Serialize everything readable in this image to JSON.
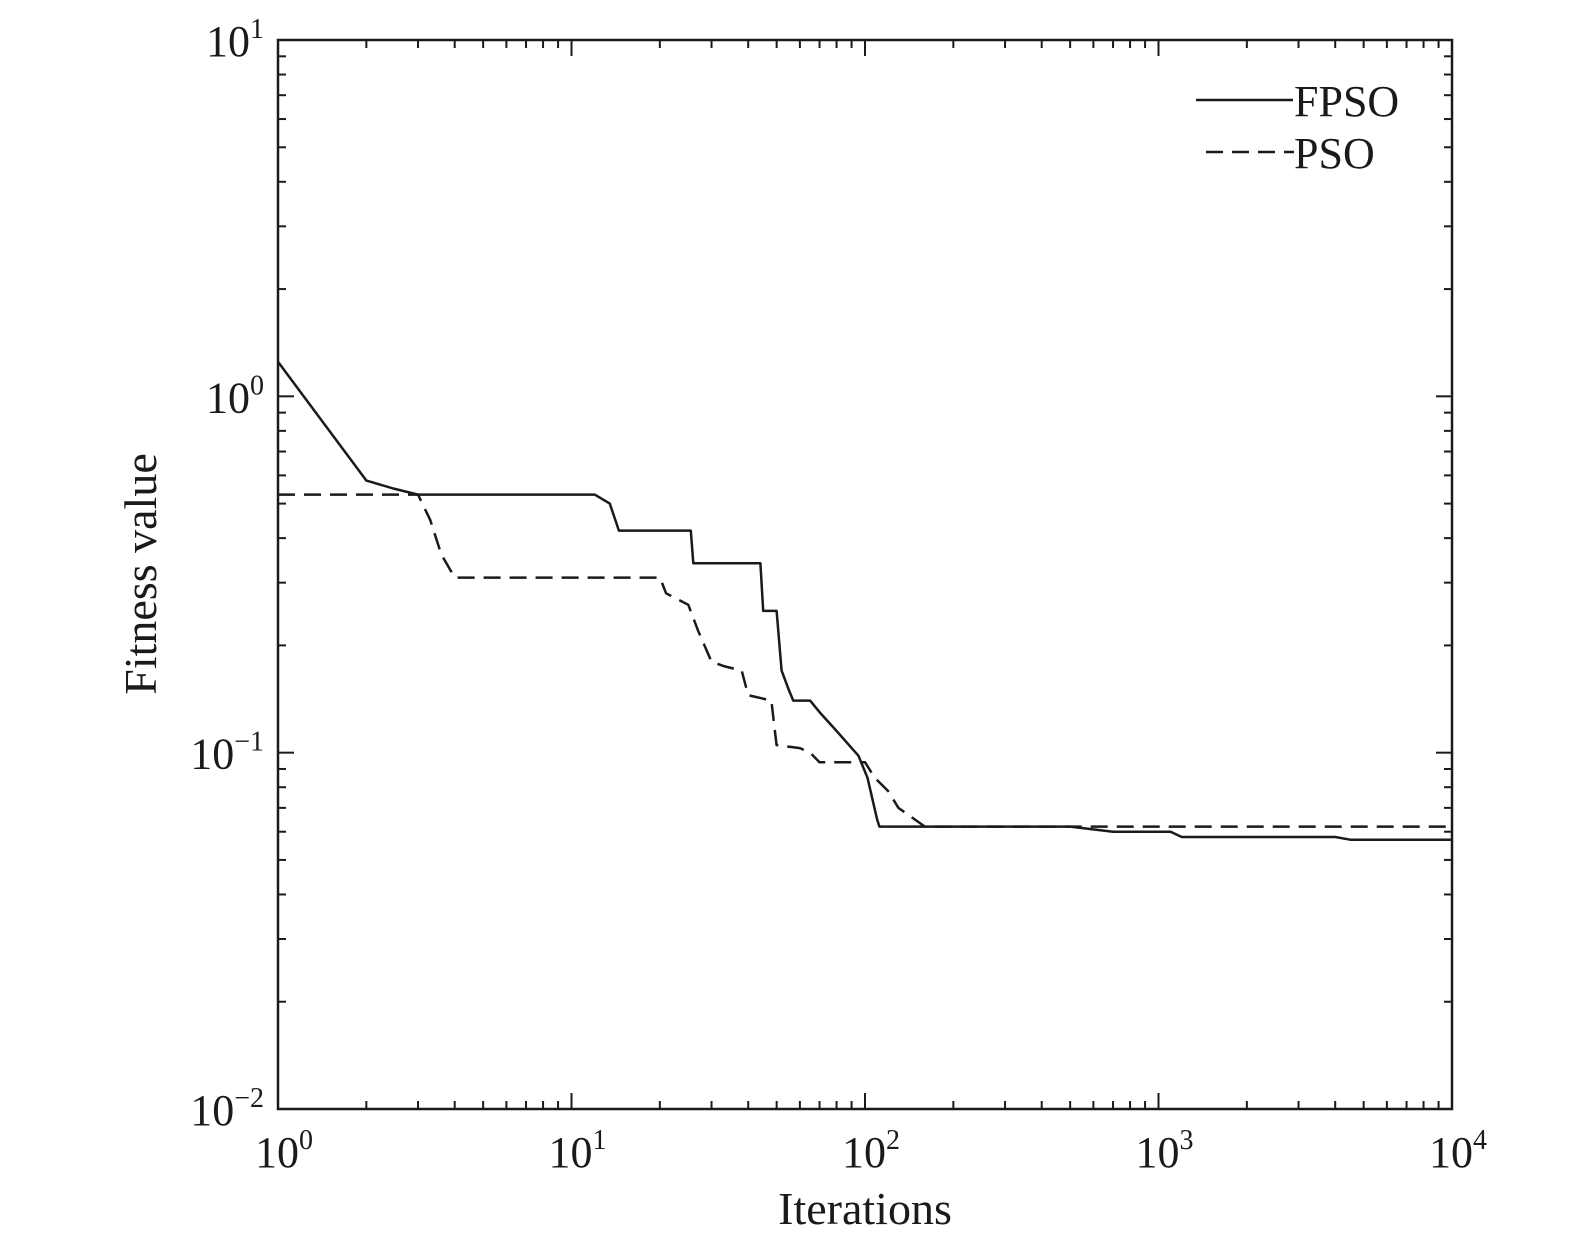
{
  "chart_data": {
    "type": "line",
    "xlabel": "Iterations",
    "ylabel": "Fitness value",
    "x_scale": "log",
    "y_scale": "log",
    "xlim": [
      1,
      10000
    ],
    "ylim": [
      0.01,
      10
    ],
    "grid": false,
    "legend_position": "top-right",
    "x_ticks": [
      {
        "value": 1,
        "base": "10",
        "exp": "0"
      },
      {
        "value": 10,
        "base": "10",
        "exp": "1"
      },
      {
        "value": 100,
        "base": "10",
        "exp": "2"
      },
      {
        "value": 1000,
        "base": "10",
        "exp": "3"
      },
      {
        "value": 10000,
        "base": "10",
        "exp": "4"
      }
    ],
    "y_ticks": [
      {
        "value": 0.01,
        "base": "10",
        "exp": "−2"
      },
      {
        "value": 0.1,
        "base": "10",
        "exp": "−1"
      },
      {
        "value": 1,
        "base": "10",
        "exp": "0"
      },
      {
        "value": 10,
        "base": "10",
        "exp": "1"
      }
    ],
    "series": [
      {
        "name": "FPSO",
        "style": "solid",
        "color": "#1a1a1a",
        "points": [
          [
            1,
            1.25
          ],
          [
            2,
            0.58
          ],
          [
            2.5,
            0.55
          ],
          [
            3,
            0.53
          ],
          [
            5,
            0.53
          ],
          [
            10,
            0.53
          ],
          [
            12,
            0.53
          ],
          [
            13.5,
            0.5
          ],
          [
            14.5,
            0.42
          ],
          [
            20,
            0.42
          ],
          [
            25.5,
            0.42
          ],
          [
            26,
            0.34
          ],
          [
            44,
            0.34
          ],
          [
            45,
            0.25
          ],
          [
            50,
            0.25
          ],
          [
            52,
            0.17
          ],
          [
            55,
            0.15
          ],
          [
            57,
            0.14
          ],
          [
            65,
            0.14
          ],
          [
            70,
            0.13
          ],
          [
            80,
            0.115
          ],
          [
            95,
            0.098
          ],
          [
            102,
            0.085
          ],
          [
            110,
            0.065
          ],
          [
            112,
            0.062
          ],
          [
            150,
            0.062
          ],
          [
            200,
            0.062
          ],
          [
            500,
            0.062
          ],
          [
            700,
            0.06
          ],
          [
            1100,
            0.06
          ],
          [
            1200,
            0.058
          ],
          [
            4000,
            0.058
          ],
          [
            4500,
            0.057
          ],
          [
            10000,
            0.057
          ]
        ]
      },
      {
        "name": "PSO",
        "style": "dashed",
        "color": "#1a1a1a",
        "points": [
          [
            1,
            0.53
          ],
          [
            3,
            0.53
          ],
          [
            3.3,
            0.45
          ],
          [
            3.6,
            0.36
          ],
          [
            4,
            0.31
          ],
          [
            10,
            0.31
          ],
          [
            20,
            0.31
          ],
          [
            21,
            0.28
          ],
          [
            25,
            0.26
          ],
          [
            27,
            0.22
          ],
          [
            30,
            0.18
          ],
          [
            33,
            0.175
          ],
          [
            38,
            0.17
          ],
          [
            40,
            0.145
          ],
          [
            48,
            0.14
          ],
          [
            49,
            0.12
          ],
          [
            50,
            0.105
          ],
          [
            60,
            0.103
          ],
          [
            65,
            0.1
          ],
          [
            70,
            0.094
          ],
          [
            100,
            0.094
          ],
          [
            108,
            0.085
          ],
          [
            120,
            0.078
          ],
          [
            130,
            0.07
          ],
          [
            160,
            0.062
          ],
          [
            600,
            0.062
          ],
          [
            10000,
            0.062
          ]
        ]
      }
    ]
  }
}
